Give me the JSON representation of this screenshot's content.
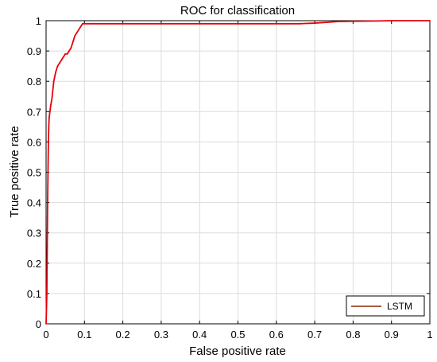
{
  "chart_data": {
    "type": "line",
    "title": "ROC for classification",
    "xlabel": "False positive rate",
    "ylabel": "True positive rate",
    "xlim": [
      0,
      1
    ],
    "ylim": [
      0,
      1
    ],
    "xticks": [
      0,
      0.1,
      0.2,
      0.3,
      0.4,
      0.5,
      0.6,
      0.7,
      0.8,
      0.9,
      1
    ],
    "yticks": [
      0,
      0.1,
      0.2,
      0.3,
      0.4,
      0.5,
      0.6,
      0.7,
      0.8,
      0.9,
      1
    ],
    "grid": true,
    "legend_position": "bottom-right",
    "series": [
      {
        "name": "LSTM",
        "color": "#e8000b",
        "legend_color": "#8b2500",
        "x": [
          0,
          0.002,
          0.003,
          0.004,
          0.005,
          0.006,
          0.007,
          0.008,
          0.01,
          0.012,
          0.015,
          0.02,
          0.025,
          0.03,
          0.035,
          0.04,
          0.045,
          0.05,
          0.055,
          0.06,
          0.065,
          0.07,
          0.075,
          0.08,
          0.085,
          0.09,
          0.095,
          0.1,
          0.12,
          0.3,
          0.5,
          0.66,
          0.7,
          0.76,
          0.8,
          0.86,
          0.9,
          1.0
        ],
        "y": [
          0,
          0.1,
          0.25,
          0.4,
          0.5,
          0.6,
          0.65,
          0.68,
          0.7,
          0.72,
          0.74,
          0.8,
          0.83,
          0.85,
          0.86,
          0.87,
          0.88,
          0.89,
          0.89,
          0.9,
          0.91,
          0.93,
          0.95,
          0.96,
          0.97,
          0.98,
          0.99,
          0.99,
          0.99,
          0.99,
          0.99,
          0.99,
          0.992,
          0.997,
          0.998,
          0.999,
          1.0,
          1.0
        ]
      }
    ]
  }
}
